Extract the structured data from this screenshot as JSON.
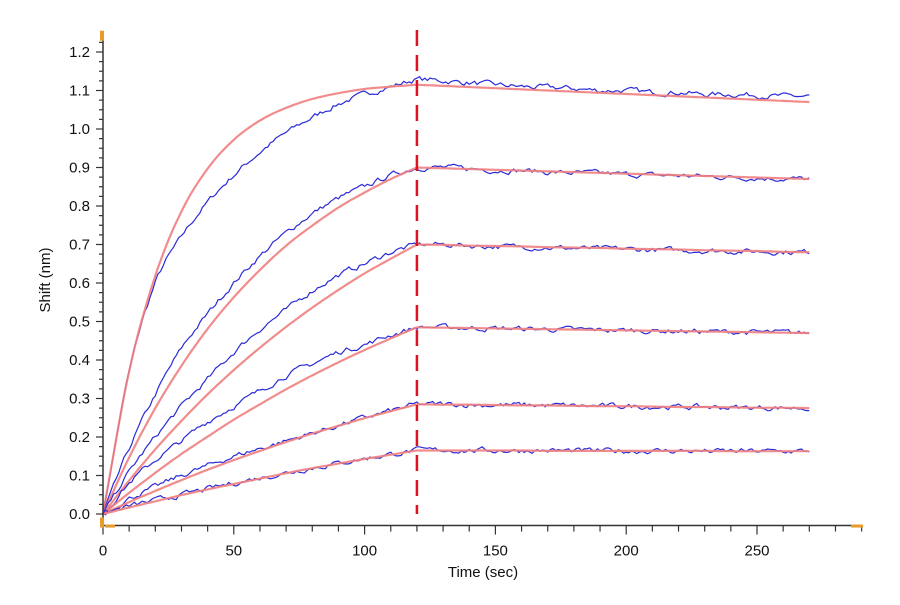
{
  "chart_data": {
    "type": "line",
    "title": "",
    "xlabel": "Time (sec)",
    "ylabel": "Shift (nm)",
    "xlim": [
      0,
      289
    ],
    "ylim": [
      -0.03,
      1.25
    ],
    "x_ticks": [
      "0",
      "50",
      "100",
      "150",
      "200",
      "250"
    ],
    "y_ticks": [
      "0.0",
      "0.1",
      "0.2",
      "0.3",
      "0.4",
      "0.5",
      "0.6",
      "0.7",
      "0.8",
      "0.9",
      "1.0",
      "1.1",
      "1.2"
    ],
    "grid": false,
    "vertical_marker": {
      "x": 120,
      "style": "dashed",
      "color": "#e01020"
    },
    "colors": {
      "measured": "#2a2ad8",
      "fit": "#f08080",
      "axis": "#333333",
      "corner_marker": "#e89a2a"
    },
    "x": [
      0,
      10,
      20,
      30,
      40,
      50,
      60,
      70,
      80,
      90,
      100,
      110,
      120,
      130,
      140,
      150,
      160,
      170,
      180,
      190,
      200,
      210,
      220,
      230,
      240,
      250,
      260,
      270
    ],
    "series": [
      {
        "measured": [
          0,
          0.37,
          0.6,
          0.72,
          0.81,
          0.88,
          0.94,
          0.99,
          1.03,
          1.065,
          1.09,
          1.11,
          1.13,
          1.125,
          1.12,
          1.115,
          1.11,
          1.108,
          1.105,
          1.1,
          1.1,
          1.095,
          1.095,
          1.09,
          1.09,
          1.088,
          1.085,
          1.085
        ],
        "fit": [
          0,
          0.371,
          0.619,
          0.786,
          0.897,
          0.972,
          1.022,
          1.055,
          1.078,
          1.093,
          1.104,
          1.11,
          1.115,
          1.112,
          1.109,
          1.106,
          1.103,
          1.1,
          1.097,
          1.094,
          1.091,
          1.088,
          1.085,
          1.082,
          1.079,
          1.076,
          1.073,
          1.07
        ]
      },
      {
        "measured": [
          0,
          0.17,
          0.31,
          0.43,
          0.52,
          0.6,
          0.67,
          0.73,
          0.78,
          0.82,
          0.85,
          0.88,
          0.9,
          0.9,
          0.897,
          0.893,
          0.892,
          0.888,
          0.886,
          0.885,
          0.882,
          0.88,
          0.879,
          0.877,
          0.875,
          0.873,
          0.871,
          0.87
        ],
        "fit": [
          0,
          0.147,
          0.275,
          0.385,
          0.481,
          0.563,
          0.634,
          0.697,
          0.749,
          0.796,
          0.835,
          0.87,
          0.9,
          0.898,
          0.896,
          0.894,
          0.892,
          0.89,
          0.888,
          0.886,
          0.884,
          0.882,
          0.88,
          0.878,
          0.876,
          0.874,
          0.872,
          0.87
        ]
      },
      {
        "measured": [
          0,
          0.11,
          0.2,
          0.28,
          0.35,
          0.42,
          0.48,
          0.53,
          0.58,
          0.62,
          0.65,
          0.68,
          0.7,
          0.7,
          0.697,
          0.695,
          0.694,
          0.692,
          0.69,
          0.689,
          0.688,
          0.686,
          0.685,
          0.684,
          0.683,
          0.682,
          0.681,
          0.68
        ],
        "fit": [
          0,
          0.087,
          0.168,
          0.242,
          0.311,
          0.374,
          0.432,
          0.486,
          0.536,
          0.582,
          0.625,
          0.663,
          0.7,
          0.699,
          0.697,
          0.696,
          0.695,
          0.693,
          0.692,
          0.691,
          0.689,
          0.688,
          0.687,
          0.685,
          0.684,
          0.683,
          0.681,
          0.68
        ]
      },
      {
        "measured": [
          0,
          0.08,
          0.14,
          0.19,
          0.24,
          0.28,
          0.32,
          0.36,
          0.39,
          0.42,
          0.44,
          0.465,
          0.485,
          0.485,
          0.483,
          0.482,
          0.481,
          0.48,
          0.479,
          0.478,
          0.477,
          0.476,
          0.475,
          0.474,
          0.473,
          0.472,
          0.471,
          0.47
        ],
        "fit": [
          0,
          0.055,
          0.107,
          0.156,
          0.201,
          0.245,
          0.285,
          0.324,
          0.36,
          0.394,
          0.426,
          0.456,
          0.485,
          0.484,
          0.483,
          0.482,
          0.481,
          0.48,
          0.479,
          0.478,
          0.477,
          0.476,
          0.475,
          0.474,
          0.473,
          0.472,
          0.471,
          0.47
        ]
      },
      {
        "measured": [
          0,
          0.04,
          0.07,
          0.1,
          0.125,
          0.15,
          0.17,
          0.19,
          0.21,
          0.23,
          0.25,
          0.268,
          0.285,
          0.285,
          0.284,
          0.283,
          0.283,
          0.282,
          0.281,
          0.28,
          0.28,
          0.279,
          0.278,
          0.278,
          0.277,
          0.276,
          0.276,
          0.275
        ],
        "fit": [
          0,
          0.031,
          0.06,
          0.088,
          0.115,
          0.14,
          0.164,
          0.187,
          0.209,
          0.229,
          0.249,
          0.267,
          0.285,
          0.284,
          0.284,
          0.283,
          0.282,
          0.282,
          0.281,
          0.28,
          0.28,
          0.279,
          0.278,
          0.278,
          0.277,
          0.276,
          0.276,
          0.275
        ]
      },
      {
        "measured": [
          0,
          0.02,
          0.035,
          0.05,
          0.065,
          0.08,
          0.094,
          0.107,
          0.12,
          0.132,
          0.144,
          0.155,
          0.165,
          0.166,
          0.165,
          0.165,
          0.165,
          0.165,
          0.164,
          0.164,
          0.164,
          0.164,
          0.164,
          0.163,
          0.163,
          0.163,
          0.163,
          0.163
        ],
        "fit": [
          0,
          0.017,
          0.033,
          0.049,
          0.064,
          0.078,
          0.092,
          0.106,
          0.119,
          0.131,
          0.143,
          0.154,
          0.165,
          0.165,
          0.165,
          0.165,
          0.165,
          0.164,
          0.164,
          0.164,
          0.164,
          0.164,
          0.164,
          0.164,
          0.163,
          0.163,
          0.163,
          0.163
        ]
      }
    ]
  }
}
